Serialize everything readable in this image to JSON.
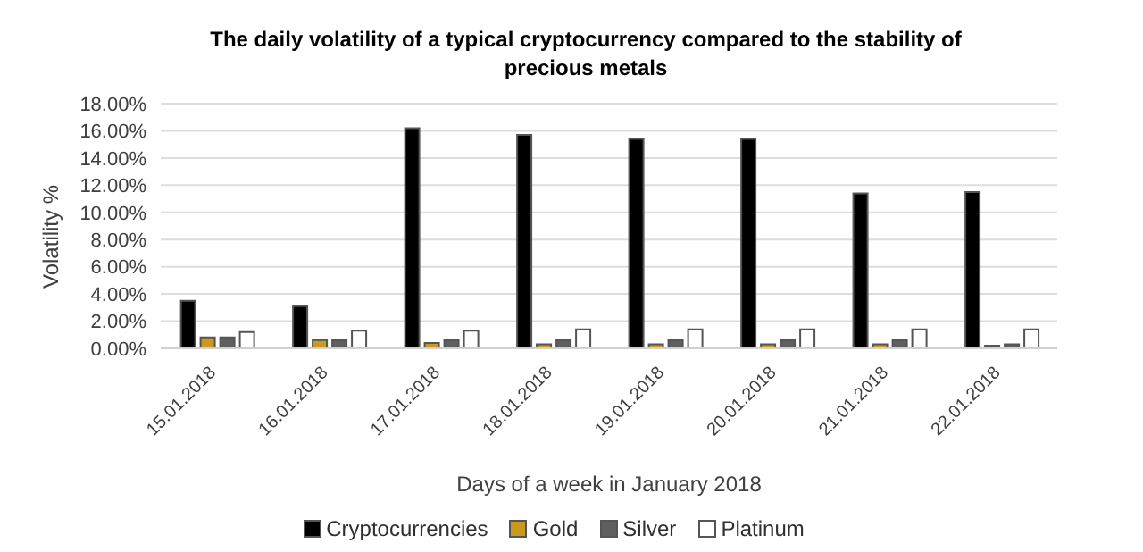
{
  "chart_data": {
    "type": "bar",
    "title": "The daily volatility of a typical cryptocurrency compared to the stability of precious metals",
    "xlabel": "Days of a week in January 2018",
    "ylabel": "Volatility %",
    "categories": [
      "15.01.2018",
      "16.01.2018",
      "17.01.2018",
      "18.01.2018",
      "19.01.2018",
      "20.01.2018",
      "21.01.2018",
      "22.01.2018"
    ],
    "series": [
      {
        "name": "Cryptocurrencies",
        "color": "#000000",
        "values": [
          3.5,
          3.1,
          16.2,
          15.7,
          15.4,
          15.4,
          11.4,
          11.5
        ]
      },
      {
        "name": "Gold",
        "color": "#c99a1e",
        "values": [
          0.8,
          0.6,
          0.4,
          0.3,
          0.3,
          0.3,
          0.3,
          0.2
        ]
      },
      {
        "name": "Silver",
        "color": "#5f5f5f",
        "values": [
          0.8,
          0.6,
          0.6,
          0.6,
          0.6,
          0.6,
          0.6,
          0.3
        ]
      },
      {
        "name": "Platinum",
        "color": "#ffffff",
        "values": [
          1.2,
          1.3,
          1.3,
          1.4,
          1.4,
          1.4,
          1.4,
          1.4
        ]
      }
    ],
    "ylim": [
      0,
      18
    ],
    "yticks": [
      {
        "value": 0,
        "label": "0.00%"
      },
      {
        "value": 2,
        "label": "2.00%"
      },
      {
        "value": 4,
        "label": "4.00%"
      },
      {
        "value": 6,
        "label": "6.00%"
      },
      {
        "value": 8,
        "label": "8.00%"
      },
      {
        "value": 10,
        "label": "10.00%"
      },
      {
        "value": 12,
        "label": "12.00%"
      },
      {
        "value": 14,
        "label": "14.00%"
      },
      {
        "value": 16,
        "label": "16.00%"
      },
      {
        "value": 18,
        "label": "18.00%"
      }
    ],
    "grid": "y",
    "legend": "bottom"
  }
}
